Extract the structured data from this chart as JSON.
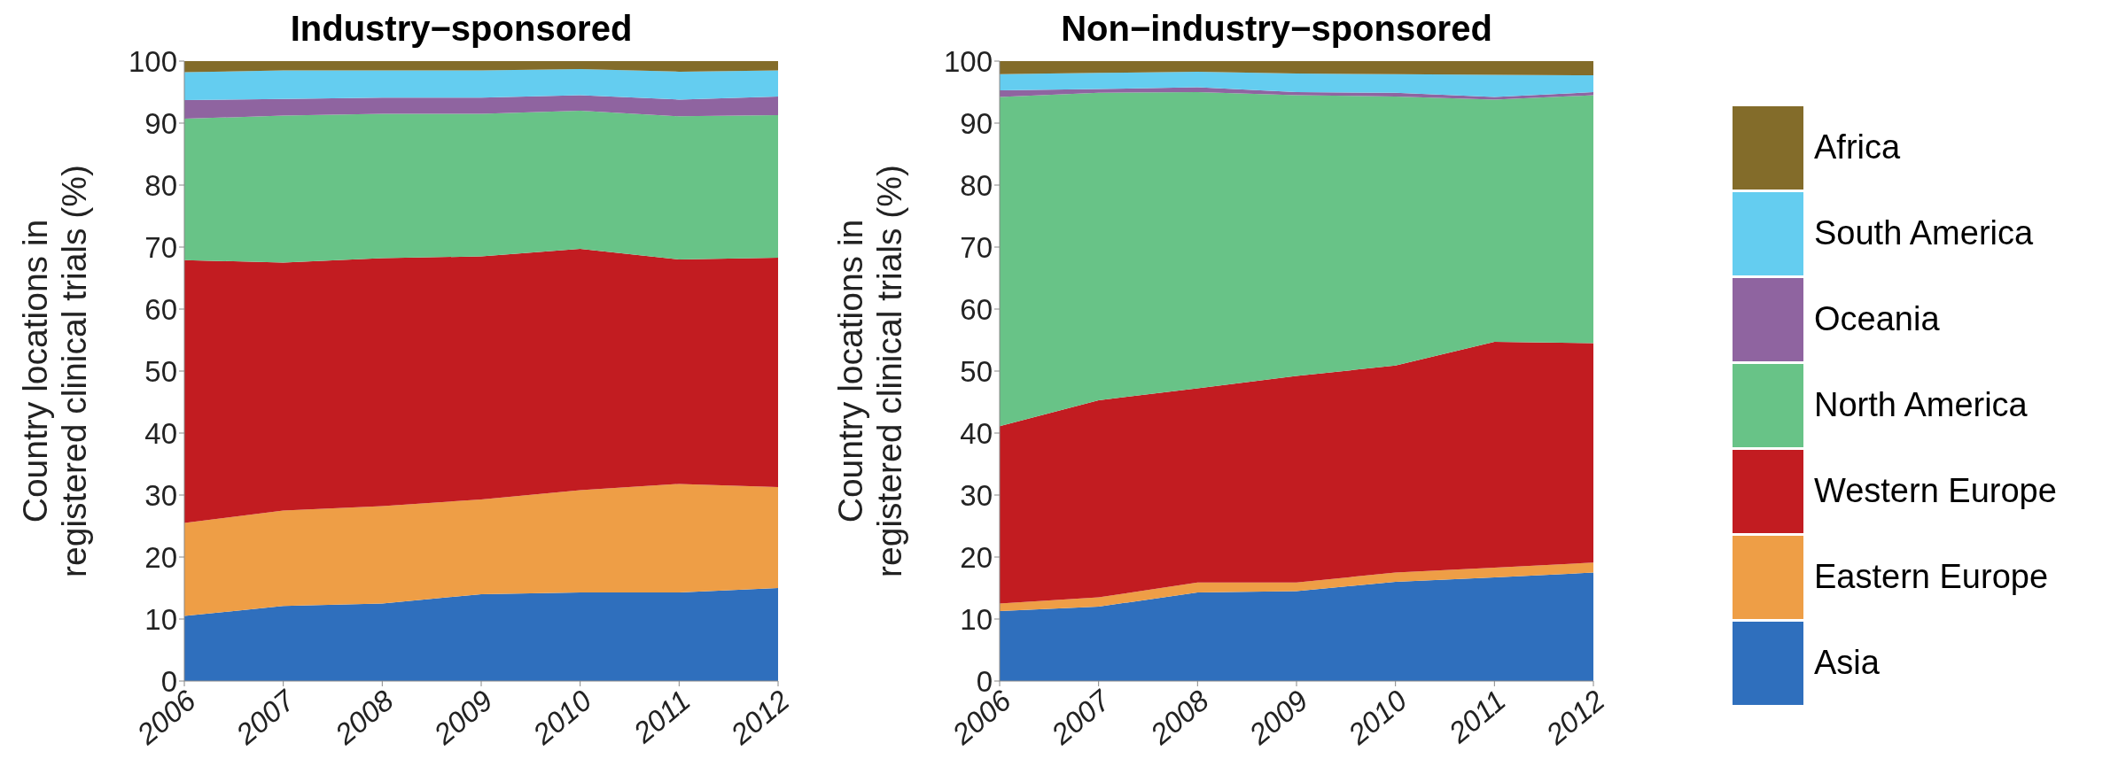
{
  "chart_data": [
    {
      "type": "area",
      "stacked": true,
      "title": "Industry−sponsored",
      "ylabel": "Country locations in registered clinical trials (%)",
      "x": [
        2006,
        2007,
        2008,
        2009,
        2010,
        2011,
        2012
      ],
      "xlim": [
        2006,
        2012
      ],
      "xticks": [
        2006,
        2007,
        2008,
        2009,
        2010,
        2011,
        2012
      ],
      "ylim": [
        0,
        100
      ],
      "yticks": [
        0,
        10,
        20,
        30,
        40,
        50,
        60,
        70,
        80,
        90,
        100
      ],
      "grid": false,
      "legend": false,
      "series": [
        {
          "color": "#2f6fbd",
          "values": [
            10.5,
            12.1,
            12.5,
            14.0,
            14.3,
            14.3,
            15.0
          ]
        },
        {
          "color": "#ee9e46",
          "values": [
            15.0,
            15.4,
            15.7,
            15.3,
            16.5,
            17.5,
            16.3
          ]
        },
        {
          "color": "#c21c21",
          "values": [
            42.4,
            40.0,
            40.0,
            39.2,
            38.9,
            36.2,
            37.0
          ]
        },
        {
          "color": "#68c387",
          "values": [
            22.8,
            23.7,
            23.3,
            23.0,
            22.3,
            23.1,
            23.0
          ]
        },
        {
          "color": "#8f64a0",
          "values": [
            3.0,
            2.7,
            2.6,
            2.6,
            2.5,
            2.7,
            3.0
          ]
        },
        {
          "color": "#64cdf0",
          "values": [
            4.5,
            4.6,
            4.4,
            4.4,
            4.2,
            4.5,
            4.2
          ]
        },
        {
          "color": "#836c2a",
          "values": [
            1.8,
            1.5,
            1.5,
            1.5,
            1.3,
            1.7,
            1.5
          ]
        }
      ]
    },
    {
      "type": "area",
      "stacked": true,
      "title": "Non−industry−sponsored",
      "ylabel": "Country locations in registered clinical trials (%)",
      "x": [
        2006,
        2007,
        2008,
        2009,
        2010,
        2011,
        2012
      ],
      "xlim": [
        2006,
        2012
      ],
      "xticks": [
        2006,
        2007,
        2008,
        2009,
        2010,
        2011,
        2012
      ],
      "ylim": [
        0,
        100
      ],
      "yticks": [
        0,
        10,
        20,
        30,
        40,
        50,
        60,
        70,
        80,
        90,
        100
      ],
      "grid": false,
      "legend": "right",
      "series": [
        {
          "name": "Asia",
          "color": "#2f6fbd",
          "values": [
            11.3,
            12.0,
            14.3,
            14.5,
            16.0,
            16.7,
            17.5
          ]
        },
        {
          "name": "Eastern Europe",
          "color": "#ee9e46",
          "values": [
            1.2,
            1.5,
            1.6,
            1.4,
            1.5,
            1.6,
            1.6
          ]
        },
        {
          "name": "Western Europe",
          "color": "#c21c21",
          "values": [
            28.6,
            31.8,
            31.3,
            33.3,
            33.4,
            36.4,
            35.4
          ]
        },
        {
          "name": "North America",
          "color": "#68c387",
          "values": [
            53.1,
            49.6,
            47.8,
            45.3,
            43.4,
            39.1,
            40.0
          ]
        },
        {
          "name": "Oceania",
          "color": "#8f64a0",
          "values": [
            1.1,
            0.6,
            0.8,
            0.5,
            0.6,
            0.4,
            0.5
          ]
        },
        {
          "name": "South America",
          "color": "#64cdf0",
          "values": [
            2.6,
            2.6,
            2.5,
            3.0,
            3.0,
            3.6,
            2.7
          ]
        },
        {
          "name": "Africa",
          "color": "#836c2a",
          "values": [
            2.1,
            1.9,
            1.7,
            2.0,
            2.1,
            2.2,
            2.3
          ]
        }
      ]
    }
  ]
}
